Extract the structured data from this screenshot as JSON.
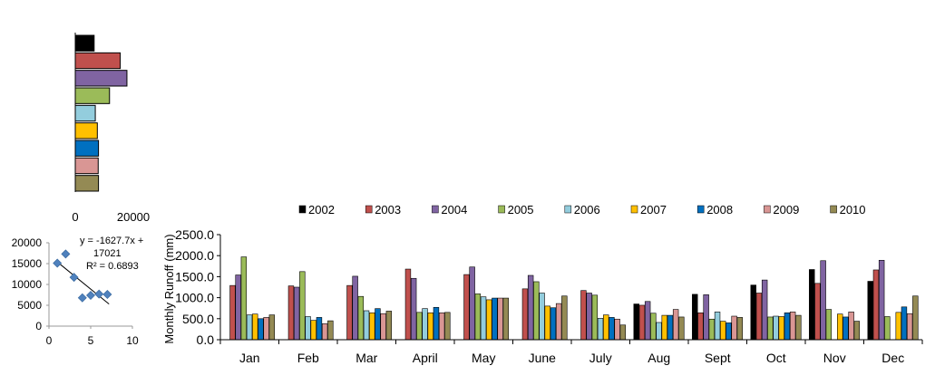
{
  "chart_data": [
    {
      "type": "bar",
      "orientation": "horizontal",
      "categories": [
        "2002",
        "2003",
        "2004",
        "2005",
        "2006",
        "2007",
        "2008",
        "2009",
        "2010"
      ],
      "values": [
        6500,
        15500,
        17800,
        11800,
        6900,
        7600,
        8000,
        7900,
        8000
      ],
      "xlim": [
        0,
        20000
      ],
      "xticks": [
        "0",
        "20000"
      ],
      "grid": false
    },
    {
      "type": "scatter",
      "x": [
        1,
        2,
        3,
        4,
        5,
        6,
        7
      ],
      "y": [
        15100,
        17300,
        11700,
        6800,
        7400,
        7700,
        7600
      ],
      "xlim": [
        0,
        10
      ],
      "ylim": [
        0,
        20000
      ],
      "xticks": [
        "0",
        "5",
        "10"
      ],
      "yticks": [
        "0",
        "5000",
        "10000",
        "15000",
        "20000"
      ],
      "trendline": {
        "slope": -1627.7,
        "intercept": 17021
      },
      "equation_line1": "y = -1627.7x +",
      "equation_line2": "17021",
      "r_squared": "R² = 0.6893",
      "marker_color": "#4f81bd"
    },
    {
      "type": "bar",
      "categories": [
        "Jan",
        "Feb",
        "Mar",
        "April",
        "May",
        "June",
        "July",
        "Aug",
        "Sept",
        "Oct",
        "Nov",
        "Dec"
      ],
      "series": [
        {
          "name": "2002",
          "color": "#000000",
          "values": [
            0,
            0,
            0,
            0,
            0,
            0,
            0,
            850,
            1080,
            1300,
            1670,
            1390
          ]
        },
        {
          "name": "2003",
          "color": "#c0504d",
          "values": [
            1290,
            1280,
            1290,
            1680,
            1550,
            1210,
            1170,
            820,
            640,
            1110,
            1340,
            1660
          ]
        },
        {
          "name": "2004",
          "color": "#8064a2",
          "values": [
            1540,
            1250,
            1510,
            1460,
            1730,
            1530,
            1110,
            910,
            1070,
            1420,
            1880,
            1890
          ]
        },
        {
          "name": "2005",
          "color": "#9bbb59",
          "values": [
            1970,
            1620,
            1030,
            650,
            1090,
            1380,
            1060,
            630,
            490,
            540,
            720,
            550
          ]
        },
        {
          "name": "2006",
          "color": "#93cddd",
          "values": [
            590,
            550,
            690,
            740,
            1020,
            1110,
            510,
            410,
            660,
            560,
            0,
            0
          ]
        },
        {
          "name": "2007",
          "color": "#ffc000",
          "values": [
            610,
            460,
            640,
            640,
            950,
            800,
            590,
            580,
            440,
            550,
            610,
            650
          ]
        },
        {
          "name": "2008",
          "color": "#0070c0",
          "values": [
            500,
            530,
            740,
            770,
            990,
            760,
            530,
            580,
            400,
            640,
            540,
            780
          ]
        },
        {
          "name": "2009",
          "color": "#d99694",
          "values": [
            530,
            380,
            620,
            640,
            990,
            860,
            490,
            720,
            560,
            660,
            660,
            620
          ]
        },
        {
          "name": "2010",
          "color": "#948a54",
          "values": [
            590,
            450,
            680,
            650,
            990,
            1040,
            350,
            540,
            530,
            580,
            440,
            1040
          ]
        }
      ],
      "ylabel": "Monthly Runoff (mm)",
      "ylim": [
        0,
        2500
      ],
      "yticks": [
        "0.0",
        "500.0",
        "1000.0",
        "1500.0",
        "2000.0",
        "2500.0"
      ],
      "legend_placement": "top",
      "grid": false
    }
  ]
}
